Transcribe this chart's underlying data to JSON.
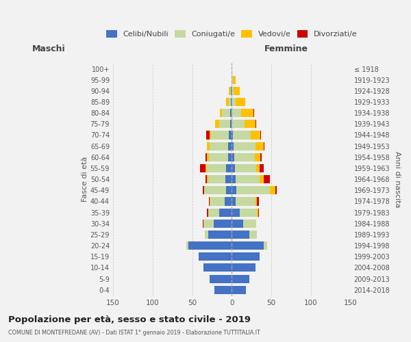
{
  "age_groups": [
    "0-4",
    "5-9",
    "10-14",
    "15-19",
    "20-24",
    "25-29",
    "30-34",
    "35-39",
    "40-44",
    "45-49",
    "50-54",
    "55-59",
    "60-64",
    "65-69",
    "70-74",
    "75-79",
    "80-84",
    "85-89",
    "90-94",
    "95-99",
    "100+"
  ],
  "birth_years": [
    "2014-2018",
    "2009-2013",
    "2004-2008",
    "1999-2003",
    "1994-1998",
    "1989-1993",
    "1984-1988",
    "1979-1983",
    "1974-1978",
    "1969-1973",
    "1964-1968",
    "1959-1963",
    "1954-1958",
    "1949-1953",
    "1944-1948",
    "1939-1943",
    "1934-1938",
    "1929-1933",
    "1924-1928",
    "1919-1923",
    "≤ 1918"
  ],
  "colors": {
    "celibi": "#4472c4",
    "coniugati": "#c5d9a0",
    "vedovi": "#ffc000",
    "divorziati": "#cc0000"
  },
  "maschi": {
    "celibi": [
      22,
      28,
      36,
      42,
      55,
      30,
      23,
      16,
      9,
      7,
      8,
      7,
      5,
      5,
      4,
      2,
      2,
      1,
      1,
      0,
      0
    ],
    "coniugati": [
      0,
      0,
      0,
      0,
      2,
      4,
      13,
      14,
      18,
      28,
      22,
      24,
      24,
      23,
      22,
      14,
      10,
      3,
      1,
      0,
      0
    ],
    "vedovi": [
      0,
      0,
      0,
      0,
      0,
      0,
      0,
      0,
      1,
      0,
      1,
      2,
      2,
      3,
      2,
      5,
      3,
      3,
      2,
      0,
      0
    ],
    "divorziati": [
      0,
      0,
      0,
      0,
      0,
      0,
      1,
      1,
      1,
      2,
      2,
      7,
      2,
      0,
      4,
      0,
      0,
      0,
      0,
      0,
      0
    ]
  },
  "femmine": {
    "celibi": [
      18,
      22,
      30,
      35,
      40,
      22,
      14,
      10,
      5,
      6,
      5,
      4,
      3,
      2,
      1,
      0,
      0,
      0,
      0,
      0,
      0
    ],
    "coniugati": [
      0,
      0,
      0,
      0,
      5,
      10,
      17,
      22,
      25,
      42,
      30,
      27,
      26,
      28,
      23,
      16,
      12,
      5,
      2,
      1,
      0
    ],
    "vedovi": [
      0,
      0,
      0,
      0,
      0,
      0,
      0,
      1,
      2,
      7,
      5,
      4,
      7,
      10,
      12,
      14,
      15,
      12,
      8,
      4,
      0
    ],
    "divorziati": [
      0,
      0,
      0,
      0,
      0,
      0,
      0,
      1,
      2,
      2,
      8,
      5,
      2,
      1,
      1,
      1,
      1,
      0,
      0,
      0,
      0
    ]
  },
  "xlim": 150,
  "title": "Popolazione per età, sesso e stato civile - 2019",
  "subtitle": "COMUNE DI MONTEFREDANE (AV) - Dati ISTAT 1° gennaio 2019 - Elaborazione TUTTITALIA.IT",
  "ylabel_left": "Fasce di età",
  "ylabel_right": "Anni di nascita",
  "legend_labels": [
    "Celibi/Nubili",
    "Coniugati/e",
    "Vedovi/e",
    "Divorziati/e"
  ],
  "background_color": "#f2f2f2",
  "bar_height": 0.75,
  "grid_color": "#cccccc"
}
